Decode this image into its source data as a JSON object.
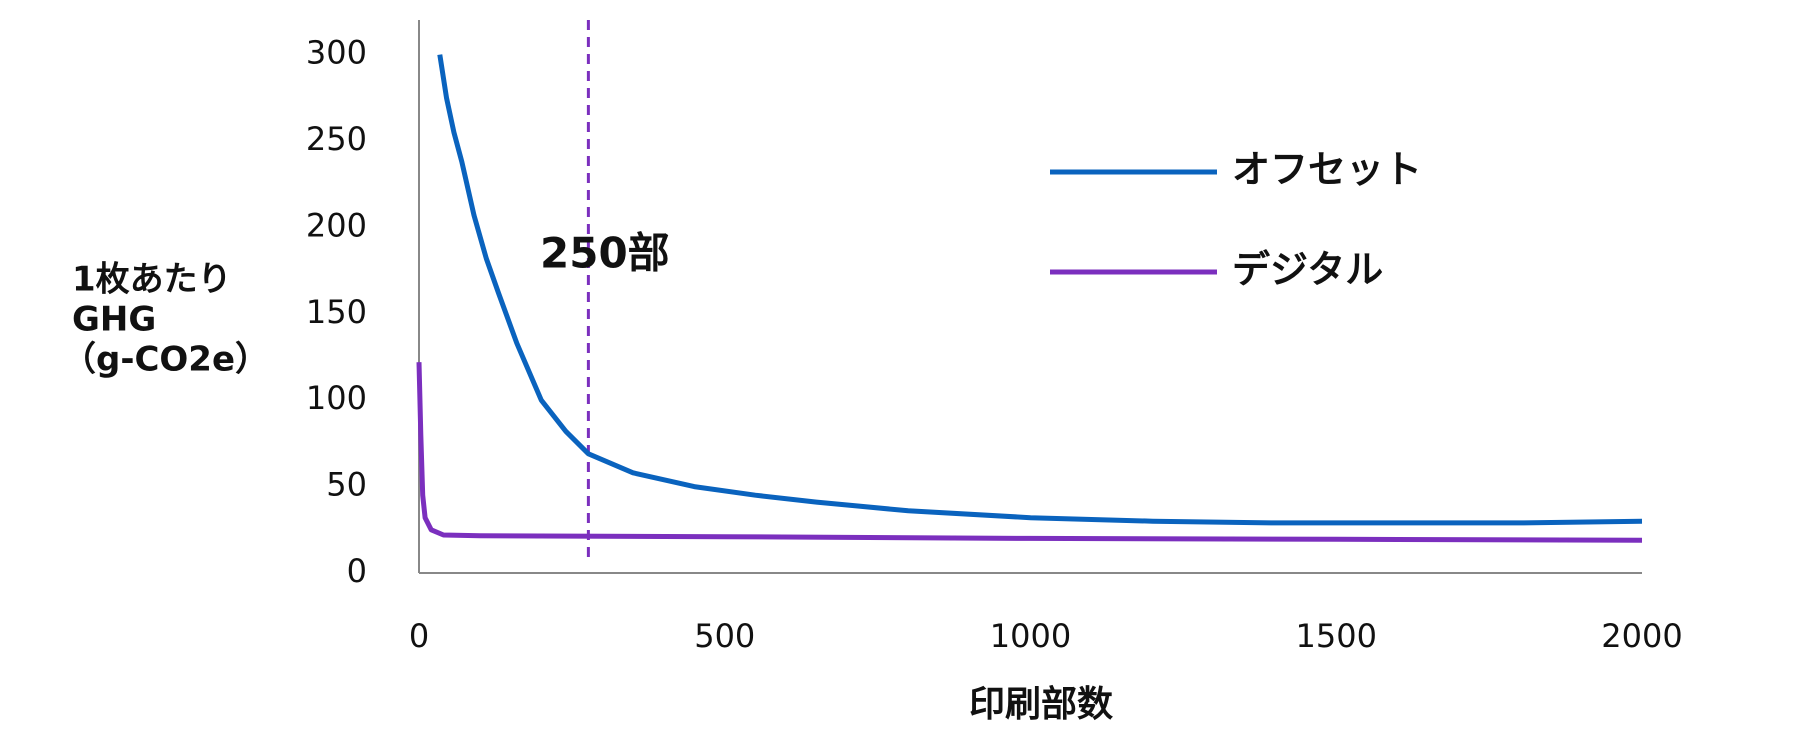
{
  "chart_data": {
    "type": "line",
    "y_label": [
      "1枚あたり",
      "GHG",
      "（g-CO2e）"
    ],
    "x_label": "印刷部数",
    "annotation": {
      "x": 277,
      "label": "250部",
      "color": "#7b2fbe"
    },
    "series": [
      {
        "name": "オフセット",
        "color": "#0a63be",
        "x": [
          34,
          45,
          57,
          70,
          90,
          110,
          130,
          160,
          200,
          240,
          277,
          350,
          450,
          550,
          650,
          800,
          1000,
          1200,
          1400,
          1600,
          1800,
          2000
        ],
        "values": [
          300,
          275,
          255,
          238,
          207,
          182,
          162,
          133,
          100,
          82,
          69,
          58,
          50,
          45,
          41,
          36,
          32,
          30,
          29,
          29,
          29,
          30
        ]
      },
      {
        "name": "デジタル",
        "color": "#7b2fbe",
        "x": [
          0,
          3,
          6,
          10,
          20,
          40,
          100,
          500,
          1000,
          1500,
          2000
        ],
        "values": [
          122,
          80,
          45,
          32,
          25,
          22,
          21.5,
          21,
          20,
          19.5,
          19
        ]
      }
    ],
    "xlim": [
      0,
      2000
    ],
    "xticks": [
      0,
      500,
      1000,
      1500,
      2000
    ],
    "ylim": [
      0,
      320
    ],
    "yticks": [
      0,
      50,
      100,
      150,
      200,
      250,
      300
    ],
    "grid": false,
    "legend": "upper right"
  }
}
